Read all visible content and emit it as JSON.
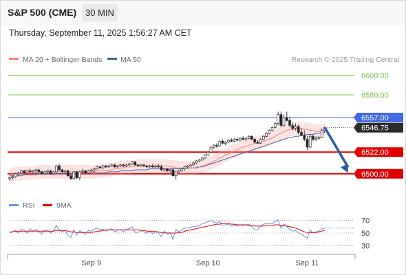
{
  "header": {
    "title": "S&P 500 (CME)",
    "interval": "30 MIN",
    "datetime": "Thursday, September 11, 2025 1:56:27 AM CET"
  },
  "legend": {
    "ma20": "MA 20 + Bollinger Bands",
    "ma50": "MA 50",
    "credit": "Research © 2025 Trading Central",
    "rsi": "RSI",
    "ma9": "9MA"
  },
  "colors": {
    "up_candle": "#ffffff",
    "down_candle": "#222222",
    "bollinger": "#f4a6a6",
    "ma20": "#f08080",
    "ma50": "#3b5fa8",
    "resistance": "#e00000",
    "support_line": "#e00000",
    "pivot_line": "#4169e1",
    "target_lines": "#7cc14e",
    "arrow": "#2a5aa0",
    "rsi_line": "#6a8fd6",
    "rsi_ma": "#e00000"
  },
  "chart_data": [
    {
      "type": "candlestick",
      "title": "S&P 500 (CME)",
      "ylim": [
        6488,
        6610
      ],
      "price_labels": [
        {
          "value": 6600.0,
          "label": "6600.00",
          "style": "green"
        },
        {
          "value": 6580.0,
          "label": "6580.00",
          "style": "green"
        },
        {
          "value": 6557.0,
          "label": "6557.00",
          "style": "blue"
        },
        {
          "value": 6546.75,
          "label": "6546.75",
          "style": "current"
        },
        {
          "value": 6522.0,
          "label": "6522.00",
          "style": "red"
        },
        {
          "value": 6500.0,
          "label": "6500.00",
          "style": "red"
        }
      ],
      "horizontal_lines": [
        {
          "value": 6600.0,
          "style": "green"
        },
        {
          "value": 6580.0,
          "style": "green"
        },
        {
          "value": 6557.0,
          "style": "blue"
        },
        {
          "value": 6522.0,
          "style": "red"
        },
        {
          "value": 6500.0,
          "style": "red"
        }
      ],
      "x_tick_labels": [
        "Sep 9",
        "Sep 10",
        "Sep 11"
      ],
      "x_tick_index": [
        28,
        68,
        102
      ],
      "forecast": {
        "from_index": 108,
        "from_value": 6547,
        "to_index": 116,
        "to_value": 6501
      },
      "candles": [
        [
          6495,
          6497,
          6493,
          6496
        ],
        [
          6496,
          6498,
          6494,
          6497
        ],
        [
          6497,
          6501,
          6496,
          6500
        ],
        [
          6500,
          6502,
          6498,
          6501
        ],
        [
          6501,
          6504,
          6500,
          6503
        ],
        [
          6503,
          6504,
          6500,
          6501
        ],
        [
          6501,
          6504,
          6500,
          6503
        ],
        [
          6503,
          6505,
          6501,
          6502
        ],
        [
          6502,
          6504,
          6500,
          6503
        ],
        [
          6503,
          6505,
          6501,
          6504
        ],
        [
          6504,
          6505,
          6501,
          6502
        ],
        [
          6502,
          6503,
          6499,
          6500
        ],
        [
          6500,
          6503,
          6499,
          6502
        ],
        [
          6502,
          6504,
          6500,
          6503
        ],
        [
          6503,
          6504,
          6499,
          6500
        ],
        [
          6500,
          6503,
          6499,
          6502
        ],
        [
          6502,
          6509,
          6501,
          6508
        ],
        [
          6508,
          6510,
          6503,
          6504
        ],
        [
          6504,
          6505,
          6501,
          6502
        ],
        [
          6502,
          6504,
          6500,
          6503
        ],
        [
          6503,
          6504,
          6497,
          6498
        ],
        [
          6498,
          6500,
          6494,
          6495
        ],
        [
          6495,
          6503,
          6494,
          6502
        ],
        [
          6502,
          6503,
          6495,
          6496
        ],
        [
          6496,
          6503,
          6494,
          6502
        ],
        [
          6502,
          6505,
          6500,
          6503
        ],
        [
          6503,
          6504,
          6500,
          6501
        ],
        [
          6501,
          6504,
          6500,
          6503
        ],
        [
          6503,
          6505,
          6502,
          6504
        ],
        [
          6504,
          6506,
          6502,
          6505
        ],
        [
          6505,
          6508,
          6504,
          6507
        ],
        [
          6507,
          6508,
          6505,
          6506
        ],
        [
          6506,
          6509,
          6505,
          6508
        ],
        [
          6508,
          6509,
          6506,
          6507
        ],
        [
          6507,
          6509,
          6506,
          6508
        ],
        [
          6508,
          6510,
          6507,
          6509
        ],
        [
          6509,
          6510,
          6506,
          6507
        ],
        [
          6507,
          6509,
          6506,
          6508
        ],
        [
          6508,
          6510,
          6507,
          6509
        ],
        [
          6509,
          6510,
          6507,
          6508
        ],
        [
          6508,
          6510,
          6507,
          6509
        ],
        [
          6509,
          6511,
          6508,
          6510
        ],
        [
          6510,
          6513,
          6509,
          6512
        ],
        [
          6512,
          6513,
          6508,
          6509
        ],
        [
          6509,
          6510,
          6507,
          6508
        ],
        [
          6508,
          6510,
          6507,
          6509
        ],
        [
          6509,
          6510,
          6507,
          6508
        ],
        [
          6508,
          6509,
          6506,
          6507
        ],
        [
          6507,
          6509,
          6506,
          6508
        ],
        [
          6508,
          6510,
          6506,
          6507
        ],
        [
          6507,
          6509,
          6506,
          6508
        ],
        [
          6508,
          6510,
          6506,
          6507
        ],
        [
          6507,
          6509,
          6503,
          6504
        ],
        [
          6504,
          6506,
          6502,
          6505
        ],
        [
          6505,
          6506,
          6502,
          6503
        ],
        [
          6503,
          6505,
          6501,
          6504
        ],
        [
          6504,
          6506,
          6497,
          6498
        ],
        [
          6498,
          6503,
          6494,
          6502
        ],
        [
          6502,
          6504,
          6501,
          6503
        ],
        [
          6503,
          6506,
          6502,
          6505
        ],
        [
          6505,
          6508,
          6503,
          6507
        ],
        [
          6507,
          6509,
          6505,
          6508
        ],
        [
          6508,
          6510,
          6507,
          6509
        ],
        [
          6509,
          6512,
          6508,
          6511
        ],
        [
          6511,
          6514,
          6510,
          6513
        ],
        [
          6513,
          6515,
          6512,
          6514
        ],
        [
          6514,
          6517,
          6513,
          6516
        ],
        [
          6516,
          6520,
          6515,
          6519
        ],
        [
          6519,
          6523,
          6518,
          6522
        ],
        [
          6522,
          6528,
          6521,
          6527
        ],
        [
          6527,
          6530,
          6525,
          6529
        ],
        [
          6529,
          6531,
          6526,
          6528
        ],
        [
          6528,
          6534,
          6527,
          6533
        ],
        [
          6533,
          6535,
          6530,
          6531
        ],
        [
          6531,
          6533,
          6529,
          6532
        ],
        [
          6532,
          6535,
          6531,
          6534
        ],
        [
          6534,
          6536,
          6532,
          6533
        ],
        [
          6533,
          6536,
          6532,
          6535
        ],
        [
          6535,
          6537,
          6533,
          6534
        ],
        [
          6534,
          6537,
          6533,
          6536
        ],
        [
          6536,
          6538,
          6534,
          6535
        ],
        [
          6535,
          6537,
          6533,
          6536
        ],
        [
          6536,
          6539,
          6535,
          6538
        ],
        [
          6538,
          6539,
          6534,
          6535
        ],
        [
          6535,
          6536,
          6531,
          6532
        ],
        [
          6532,
          6534,
          6530,
          6531
        ],
        [
          6531,
          6536,
          6530,
          6535
        ],
        [
          6535,
          6539,
          6534,
          6538
        ],
        [
          6538,
          6542,
          6537,
          6541
        ],
        [
          6541,
          6545,
          6540,
          6544
        ],
        [
          6544,
          6548,
          6543,
          6547
        ],
        [
          6547,
          6552,
          6546,
          6551
        ],
        [
          6551,
          6563,
          6549,
          6560
        ],
        [
          6560,
          6563,
          6547,
          6549
        ],
        [
          6549,
          6560,
          6548,
          6557
        ],
        [
          6557,
          6563,
          6553,
          6554
        ],
        [
          6554,
          6558,
          6547,
          6549
        ],
        [
          6549,
          6552,
          6544,
          6546
        ],
        [
          6546,
          6551,
          6544,
          6548
        ],
        [
          6548,
          6550,
          6540,
          6542
        ],
        [
          6542,
          6546,
          6538,
          6539
        ],
        [
          6539,
          6544,
          6533,
          6535
        ],
        [
          6535,
          6538,
          6524,
          6527
        ],
        [
          6527,
          6540,
          6526,
          6538
        ],
        [
          6538,
          6540,
          6533,
          6535
        ],
        [
          6535,
          6538,
          6533,
          6536
        ],
        [
          6536,
          6538,
          6534,
          6537
        ],
        [
          6537,
          6546,
          6536,
          6544
        ],
        [
          6544,
          6548,
          6542,
          6547
        ]
      ],
      "ma20": [
        6499,
        6499,
        6500,
        6500,
        6500,
        6501,
        6501,
        6501,
        6501,
        6501,
        6502,
        6502,
        6502,
        6502,
        6502,
        6502,
        6502,
        6502,
        6502,
        6502,
        6502,
        6502,
        6502,
        6502,
        6502,
        6502,
        6502,
        6502,
        6502,
        6502,
        6503,
        6503,
        6503,
        6503,
        6504,
        6504,
        6505,
        6505,
        6506,
        6506,
        6507,
        6507,
        6507,
        6508,
        6508,
        6508,
        6508,
        6508,
        6508,
        6508,
        6508,
        6508,
        6508,
        6508,
        6508,
        6507,
        6507,
        6506,
        6506,
        6506,
        6506,
        6506,
        6506,
        6506,
        6507,
        6507,
        6508,
        6509,
        6510,
        6511,
        6513,
        6514,
        6516,
        6517,
        6519,
        6520,
        6522,
        6523,
        6524,
        6526,
        6527,
        6528,
        6529,
        6530,
        6531,
        6531,
        6532,
        6533,
        6534,
        6535,
        6536,
        6538,
        6540,
        6541,
        6543,
        6544,
        6545,
        6545,
        6546,
        6546,
        6546,
        6545,
        6545,
        6544,
        6544,
        6543,
        6543,
        6543,
        6544
      ],
      "ma50": [
        6498,
        6498,
        6498,
        6498,
        6498,
        6499,
        6499,
        6499,
        6499,
        6499,
        6500,
        6500,
        6500,
        6500,
        6500,
        6500,
        6500,
        6500,
        6500,
        6500,
        6500,
        6500,
        6500,
        6500,
        6501,
        6501,
        6501,
        6501,
        6501,
        6501,
        6501,
        6501,
        6501,
        6501,
        6502,
        6502,
        6502,
        6502,
        6503,
        6503,
        6503,
        6503,
        6503,
        6504,
        6504,
        6504,
        6504,
        6504,
        6505,
        6505,
        6505,
        6505,
        6505,
        6505,
        6505,
        6505,
        6505,
        6505,
        6505,
        6505,
        6505,
        6506,
        6506,
        6506,
        6506,
        6507,
        6507,
        6508,
        6509,
        6510,
        6511,
        6512,
        6513,
        6514,
        6515,
        6516,
        6517,
        6518,
        6519,
        6520,
        6521,
        6522,
        6523,
        6524,
        6525,
        6526,
        6527,
        6528,
        6529,
        6530,
        6531,
        6532,
        6533,
        6534,
        6535,
        6536,
        6537,
        6537,
        6538,
        6538,
        6539,
        6539,
        6540,
        6540,
        6540,
        6541,
        6541,
        6542,
        6542
      ],
      "bollinger_width": 7
    },
    {
      "type": "line",
      "title": "",
      "ylim": [
        25,
        75
      ],
      "y_tick_labels": [
        "70",
        "50",
        "30"
      ],
      "y_ticks": [
        70,
        50,
        30
      ],
      "dotted_levels": [
        70,
        50,
        30
      ],
      "series": [
        {
          "name": "RSI",
          "values": [
            50,
            52,
            54,
            50,
            56,
            55,
            50,
            57,
            53,
            56,
            52,
            49,
            55,
            54,
            50,
            53,
            62,
            55,
            52,
            54,
            46,
            43,
            55,
            47,
            54,
            51,
            48,
            54,
            53,
            56,
            58,
            55,
            56,
            53,
            55,
            57,
            52,
            54,
            56,
            52,
            56,
            57,
            60,
            51,
            51,
            54,
            52,
            50,
            53,
            49,
            53,
            51,
            44,
            53,
            48,
            51,
            40,
            56,
            52,
            55,
            58,
            58,
            59,
            60,
            61,
            61,
            65,
            66,
            68,
            70,
            67,
            66,
            68,
            62,
            63,
            64,
            61,
            63,
            61,
            63,
            62,
            63,
            64,
            60,
            55,
            55,
            61,
            64,
            65,
            65,
            65,
            68,
            71,
            58,
            64,
            60,
            56,
            53,
            54,
            50,
            48,
            45,
            42,
            55,
            50,
            52,
            53,
            57,
            58
          ]
        },
        {
          "name": "9MA",
          "values": [
            52,
            52,
            53,
            53,
            53,
            53,
            53,
            53,
            53,
            53,
            53,
            53,
            53,
            53,
            53,
            53,
            54,
            54,
            54,
            54,
            53,
            52,
            52,
            51,
            51,
            51,
            51,
            51,
            51,
            52,
            53,
            53,
            54,
            55,
            55,
            55,
            55,
            55,
            55,
            55,
            55,
            55,
            55,
            55,
            55,
            54,
            54,
            53,
            53,
            53,
            52,
            52,
            51,
            51,
            50,
            50,
            50,
            50,
            51,
            51,
            53,
            54,
            55,
            56,
            57,
            58,
            59,
            60,
            61,
            62,
            63,
            64,
            64,
            65,
            65,
            65,
            64,
            64,
            63,
            63,
            63,
            63,
            62,
            62,
            61,
            61,
            61,
            61,
            62,
            62,
            62,
            63,
            63,
            62,
            62,
            61,
            60,
            59,
            58,
            56,
            54,
            52,
            51,
            51,
            51,
            51,
            52,
            53,
            54
          ]
        }
      ]
    }
  ]
}
